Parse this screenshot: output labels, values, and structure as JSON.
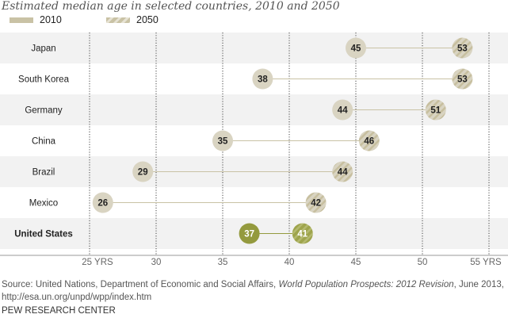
{
  "chart_data": {
    "type": "dot",
    "title": "Estimated median age in selected countries, 2010 and 2050",
    "categories": [
      "Japan",
      "South Korea",
      "Germany",
      "China",
      "Brazil",
      "Mexico",
      "United States"
    ],
    "highlight": "United States",
    "series": [
      {
        "name": "2010",
        "values": [
          45,
          38,
          44,
          35,
          29,
          26,
          37
        ]
      },
      {
        "name": "2050",
        "values": [
          53,
          53,
          51,
          46,
          44,
          42,
          41
        ]
      }
    ],
    "xlim": [
      25,
      55
    ],
    "ticks": [
      25,
      30,
      35,
      40,
      45,
      50,
      55
    ],
    "tick_labels": [
      "25 YRS",
      "30",
      "35",
      "40",
      "45",
      "50",
      "55 YRS"
    ],
    "grid": true,
    "legend": "top-left",
    "colors": {
      "c2010": "#d9d4c2",
      "c2050": "#cfc9b1",
      "highlight2010": "#949a3e",
      "highlight2050": "#a3a955",
      "band": "#f2f2f2"
    }
  },
  "source": {
    "prefix": "Source: United Nations, Department of Economic and Social Affairs, ",
    "italic": "World Population Prospects: 2012 Revision",
    "suffix": ", June 2013, http://esa.un.org/unpd/wpp/index.htm"
  },
  "footer": "PEW RESEARCH CENTER"
}
